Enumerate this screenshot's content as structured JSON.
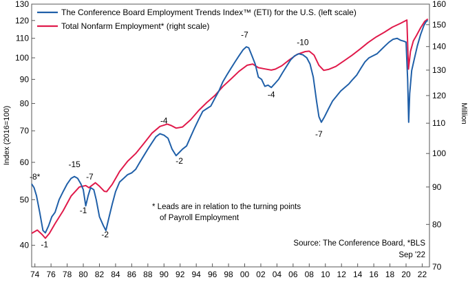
{
  "chart_data": {
    "type": "line",
    "legend": [
      {
        "label": "The Conference Board Employment Trends Index™ (ETI) for the U.S. (left scale)",
        "color": "#1f5fa8"
      },
      {
        "label": "Total Nonfarm Employment* (right scale)",
        "color": "#e0194a"
      }
    ],
    "left_axis": {
      "label": "Index (2016=100)",
      "scale": "log",
      "range": [
        36,
        130
      ],
      "ticks": [
        "40",
        "50",
        "60",
        "70",
        "80",
        "90",
        "100",
        "110",
        "120",
        "130"
      ]
    },
    "right_axis": {
      "label": "Million",
      "scale": "log",
      "range": [
        70,
        160
      ],
      "ticks": [
        "70",
        "80",
        "90",
        "100",
        "110",
        "120",
        "130",
        "140",
        "150",
        "160"
      ]
    },
    "x_axis": {
      "range": [
        1973.6,
        2022.9
      ],
      "ticks": [
        "74",
        "76",
        "78",
        "80",
        "82",
        "84",
        "86",
        "88",
        "90",
        "92",
        "94",
        "96",
        "98",
        "00",
        "02",
        "04",
        "06",
        "08",
        "10",
        "12",
        "14",
        "16",
        "18",
        "20",
        "22"
      ]
    },
    "series": [
      {
        "name": "ETI",
        "axis": "left",
        "color": "#1f5fa8",
        "points": [
          [
            1973.6,
            54
          ],
          [
            1973.9,
            53
          ],
          [
            1974.2,
            51
          ],
          [
            1974.6,
            47
          ],
          [
            1975.0,
            43
          ],
          [
            1975.3,
            42.5
          ],
          [
            1975.7,
            44
          ],
          [
            1976.1,
            46
          ],
          [
            1976.5,
            47
          ],
          [
            1977.0,
            50
          ],
          [
            1977.5,
            52
          ],
          [
            1978.0,
            54
          ],
          [
            1978.5,
            55.5
          ],
          [
            1978.9,
            56
          ],
          [
            1979.3,
            55.5
          ],
          [
            1979.7,
            54
          ],
          [
            1980.0,
            52.5
          ],
          [
            1980.3,
            48.5
          ],
          [
            1980.6,
            51
          ],
          [
            1980.9,
            53
          ],
          [
            1981.3,
            52.5
          ],
          [
            1981.6,
            50
          ],
          [
            1982.0,
            46
          ],
          [
            1982.5,
            44
          ],
          [
            1982.8,
            43
          ],
          [
            1983.2,
            46
          ],
          [
            1983.6,
            49
          ],
          [
            1984.0,
            52
          ],
          [
            1984.5,
            54.5
          ],
          [
            1985.0,
            55.5
          ],
          [
            1985.5,
            56.5
          ],
          [
            1986.0,
            57
          ],
          [
            1986.5,
            58
          ],
          [
            1987.0,
            60
          ],
          [
            1987.5,
            62
          ],
          [
            1988.0,
            64
          ],
          [
            1988.5,
            66
          ],
          [
            1989.0,
            68
          ],
          [
            1989.5,
            69
          ],
          [
            1990.0,
            68.5
          ],
          [
            1990.5,
            67.5
          ],
          [
            1991.0,
            64
          ],
          [
            1991.5,
            62
          ],
          [
            1991.9,
            63
          ],
          [
            1992.3,
            64
          ],
          [
            1992.8,
            65
          ],
          [
            1993.3,
            68
          ],
          [
            1993.8,
            71
          ],
          [
            1994.3,
            74
          ],
          [
            1994.8,
            77
          ],
          [
            1995.3,
            78
          ],
          [
            1995.8,
            79
          ],
          [
            1996.3,
            82
          ],
          [
            1996.8,
            85
          ],
          [
            1997.3,
            89
          ],
          [
            1997.8,
            92
          ],
          [
            1998.3,
            95
          ],
          [
            1998.8,
            98
          ],
          [
            1999.3,
            101
          ],
          [
            1999.8,
            104
          ],
          [
            2000.2,
            105.5
          ],
          [
            2000.5,
            105
          ],
          [
            2000.9,
            101
          ],
          [
            2001.3,
            97
          ],
          [
            2001.7,
            91
          ],
          [
            2002.1,
            90
          ],
          [
            2002.5,
            87
          ],
          [
            2002.9,
            87.5
          ],
          [
            2003.3,
            86.5
          ],
          [
            2003.7,
            88
          ],
          [
            2004.2,
            90
          ],
          [
            2004.7,
            93
          ],
          [
            2005.2,
            96
          ],
          [
            2005.7,
            99
          ],
          [
            2006.2,
            101
          ],
          [
            2006.7,
            102
          ],
          [
            2007.2,
            101.5
          ],
          [
            2007.7,
            100
          ],
          [
            2008.1,
            97
          ],
          [
            2008.5,
            91
          ],
          [
            2008.9,
            81
          ],
          [
            2009.2,
            75
          ],
          [
            2009.5,
            73
          ],
          [
            2009.9,
            75
          ],
          [
            2010.4,
            78
          ],
          [
            2010.9,
            81
          ],
          [
            2011.4,
            83
          ],
          [
            2011.9,
            85
          ],
          [
            2012.4,
            86.5
          ],
          [
            2012.9,
            88
          ],
          [
            2013.4,
            90
          ],
          [
            2013.9,
            92
          ],
          [
            2014.4,
            95
          ],
          [
            2014.9,
            98
          ],
          [
            2015.4,
            100
          ],
          [
            2015.9,
            101
          ],
          [
            2016.4,
            102
          ],
          [
            2016.9,
            104
          ],
          [
            2017.4,
            106
          ],
          [
            2017.9,
            108
          ],
          [
            2018.4,
            109.5
          ],
          [
            2018.9,
            110
          ],
          [
            2019.3,
            109
          ],
          [
            2019.7,
            108.5
          ],
          [
            2020.0,
            108
          ],
          [
            2020.2,
            90
          ],
          [
            2020.32,
            73
          ],
          [
            2020.45,
            84
          ],
          [
            2020.7,
            94
          ],
          [
            2021.0,
            99
          ],
          [
            2021.4,
            106
          ],
          [
            2021.8,
            112
          ],
          [
            2022.2,
            117
          ],
          [
            2022.5,
            119.5
          ],
          [
            2022.7,
            120
          ]
        ]
      },
      {
        "name": "Total Nonfarm Employment",
        "axis": "right",
        "color": "#e0194a",
        "points": [
          [
            1973.6,
            77.8
          ],
          [
            1974.3,
            78.6
          ],
          [
            1974.9,
            77.5
          ],
          [
            1975.3,
            76.6
          ],
          [
            1975.8,
            77.8
          ],
          [
            1976.5,
            80.2
          ],
          [
            1977.5,
            83.5
          ],
          [
            1978.5,
            87.5
          ],
          [
            1979.5,
            90.0
          ],
          [
            1980.3,
            90.4
          ],
          [
            1980.7,
            89.8
          ],
          [
            1981.5,
            91.2
          ],
          [
            1982.0,
            90.2
          ],
          [
            1982.6,
            88.8
          ],
          [
            1982.9,
            88.7
          ],
          [
            1983.6,
            90.8
          ],
          [
            1984.5,
            94.5
          ],
          [
            1985.5,
            97.6
          ],
          [
            1986.5,
            100.0
          ],
          [
            1987.5,
            103.2
          ],
          [
            1988.5,
            106.6
          ],
          [
            1989.5,
            108.9
          ],
          [
            1990.4,
            109.7
          ],
          [
            1990.9,
            109.2
          ],
          [
            1991.5,
            108.3
          ],
          [
            1992.3,
            108.7
          ],
          [
            1993.3,
            111.2
          ],
          [
            1994.3,
            114.5
          ],
          [
            1995.3,
            117.4
          ],
          [
            1996.3,
            120.0
          ],
          [
            1997.3,
            123.5
          ],
          [
            1998.3,
            126.4
          ],
          [
            1999.3,
            129.5
          ],
          [
            2000.3,
            132.0
          ],
          [
            2001.0,
            132.5
          ],
          [
            2001.7,
            131.0
          ],
          [
            2002.5,
            130.5
          ],
          [
            2003.3,
            130.0
          ],
          [
            2003.8,
            130.4
          ],
          [
            2004.6,
            131.8
          ],
          [
            2005.5,
            134.2
          ],
          [
            2006.5,
            136.6
          ],
          [
            2007.5,
            137.8
          ],
          [
            2008.0,
            138.0
          ],
          [
            2008.6,
            136.3
          ],
          [
            2009.2,
            132.0
          ],
          [
            2009.8,
            129.9
          ],
          [
            2010.4,
            130.3
          ],
          [
            2011.3,
            131.5
          ],
          [
            2012.3,
            133.8
          ],
          [
            2013.3,
            136.2
          ],
          [
            2014.3,
            138.9
          ],
          [
            2015.3,
            141.8
          ],
          [
            2016.3,
            144.3
          ],
          [
            2017.3,
            146.4
          ],
          [
            2018.3,
            148.8
          ],
          [
            2019.3,
            150.6
          ],
          [
            2020.1,
            152.2
          ],
          [
            2020.3,
            130.4
          ],
          [
            2020.55,
            137.9
          ],
          [
            2020.9,
            142.5
          ],
          [
            2021.3,
            145.0
          ],
          [
            2021.8,
            148.5
          ],
          [
            2022.3,
            151.5
          ],
          [
            2022.7,
            152.7
          ]
        ]
      }
    ],
    "annotations": [
      {
        "text": "-8*",
        "x": 1974.0,
        "y": 55.2,
        "axis": "left"
      },
      {
        "text": "-1",
        "x": 1975.2,
        "y": 39.6,
        "axis": "left"
      },
      {
        "text": "-15",
        "x": 1978.9,
        "y": 58.6,
        "axis": "left"
      },
      {
        "text": "-7",
        "x": 1980.8,
        "y": 55.2,
        "axis": "left"
      },
      {
        "text": "-1",
        "x": 1980.0,
        "y": 46.8,
        "axis": "left"
      },
      {
        "text": "-2",
        "x": 1982.7,
        "y": 41.6,
        "axis": "left"
      },
      {
        "text": "-4",
        "x": 1990.0,
        "y": 72.5,
        "axis": "left"
      },
      {
        "text": "-2",
        "x": 1991.9,
        "y": 59.6,
        "axis": "left"
      },
      {
        "text": "-7",
        "x": 2000.0,
        "y": 110.5,
        "axis": "left"
      },
      {
        "text": "-4",
        "x": 2003.3,
        "y": 82.5,
        "axis": "left"
      },
      {
        "text": "-10",
        "x": 2007.2,
        "y": 106.5,
        "axis": "left"
      },
      {
        "text": "-7",
        "x": 2009.2,
        "y": 68.0,
        "axis": "left"
      }
    ],
    "notes": [
      "* Leads are in relation to the turning points",
      "of Payroll Employment"
    ],
    "source": "Source: The Conference Board, *BLS",
    "date_label": "Sep '22",
    "grid": false
  }
}
